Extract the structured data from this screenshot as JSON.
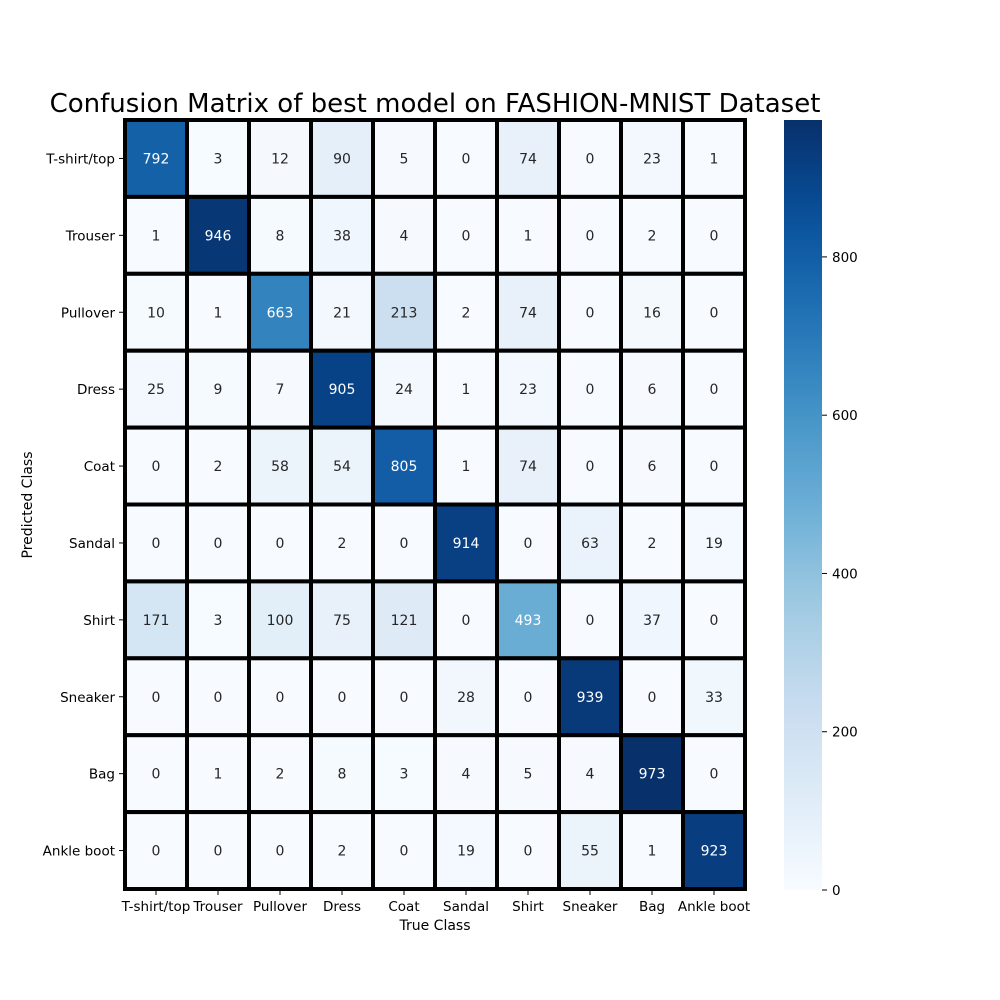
{
  "chart_data": {
    "type": "heatmap",
    "title": "Confusion Matrix of best model on FASHION-MNIST Dataset",
    "xlabel": "True Class",
    "ylabel": "Predicted Class",
    "x_categories": [
      "T-shirt/top",
      "Trouser",
      "Pullover",
      "Dress",
      "Coat",
      "Sandal",
      "Shirt",
      "Sneaker",
      "Bag",
      "Ankle boot"
    ],
    "y_categories": [
      "T-shirt/top",
      "Trouser",
      "Pullover",
      "Dress",
      "Coat",
      "Sandal",
      "Shirt",
      "Sneaker",
      "Bag",
      "Ankle boot"
    ],
    "values": [
      [
        792,
        3,
        12,
        90,
        5,
        0,
        74,
        0,
        23,
        1
      ],
      [
        1,
        946,
        8,
        38,
        4,
        0,
        1,
        0,
        2,
        0
      ],
      [
        10,
        1,
        663,
        21,
        213,
        2,
        74,
        0,
        16,
        0
      ],
      [
        25,
        9,
        7,
        905,
        24,
        1,
        23,
        0,
        6,
        0
      ],
      [
        0,
        2,
        58,
        54,
        805,
        1,
        74,
        0,
        6,
        0
      ],
      [
        0,
        0,
        0,
        2,
        0,
        914,
        0,
        63,
        2,
        19
      ],
      [
        171,
        3,
        100,
        75,
        121,
        0,
        493,
        0,
        37,
        0
      ],
      [
        0,
        0,
        0,
        0,
        0,
        28,
        0,
        939,
        0,
        33
      ],
      [
        0,
        1,
        2,
        8,
        3,
        4,
        5,
        4,
        973,
        0
      ],
      [
        0,
        0,
        0,
        2,
        0,
        19,
        0,
        55,
        1,
        923
      ]
    ],
    "colormap": "Blues",
    "vmin": 0,
    "vmax": 973,
    "colorbar_ticks": [
      0,
      200,
      400,
      600,
      800
    ],
    "cell_border_color": "#000000"
  }
}
